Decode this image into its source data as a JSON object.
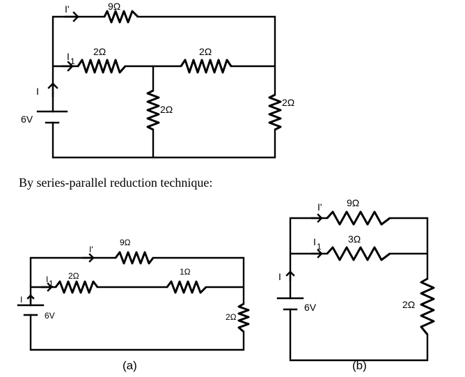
{
  "top_circuit": {
    "source_voltage": "6V",
    "current_total": "I",
    "current_branch_top": "I'",
    "current_branch_mid": "I",
    "current_branch_mid_sub": "1",
    "r_top": "9Ω",
    "r_series_left": "2Ω",
    "r_series_right": "2Ω",
    "r_shunt_middle": "2Ω",
    "r_shunt_right": "2Ω"
  },
  "caption": "By series-parallel reduction technique:",
  "circuit_a": {
    "source_voltage": "6V",
    "current_total": "I",
    "current_branch_top": "I'",
    "current_branch_mid": "I",
    "current_branch_mid_sub": "1",
    "r_top": "9Ω",
    "r_left": "2Ω",
    "r_right": "1Ω",
    "r_shunt": "2Ω",
    "label": "(a)"
  },
  "circuit_b": {
    "source_voltage": "6V",
    "current_total": "I",
    "current_branch_top": "I'",
    "current_branch_mid": "I",
    "current_branch_mid_sub": "1",
    "r_top": "9Ω",
    "r_mid": "3Ω",
    "r_shunt": "2Ω",
    "label": "(b)"
  }
}
